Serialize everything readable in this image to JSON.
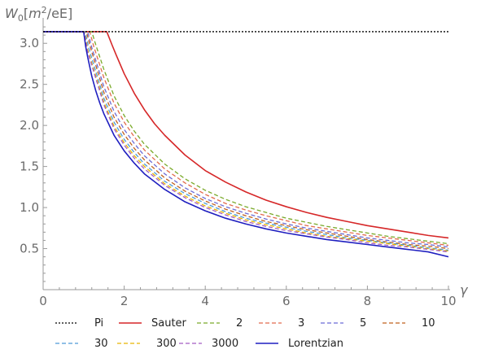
{
  "chart_data": {
    "type": "line",
    "ylabel_parts": {
      "symbol": "W",
      "sub": "0",
      "open": "[",
      "m": "m",
      "sup": "2",
      "rest": "/eE]"
    },
    "xlabel": "γ",
    "xlim": [
      0,
      10
    ],
    "ylim": [
      0,
      3.25
    ],
    "xticks": [
      0,
      2,
      4,
      6,
      8,
      10
    ],
    "yticks": [
      0.5,
      1.0,
      1.5,
      2.0,
      2.5,
      3.0
    ],
    "ytick_labels": [
      "0.5",
      "1.0",
      "1.5",
      "2.0",
      "2.5",
      "3.0"
    ],
    "legend_position": "bottom",
    "series": [
      {
        "name": "Pi",
        "color": "#000000",
        "dash": "dotted",
        "x": [
          0,
          10
        ],
        "y": [
          3.14159,
          3.14159
        ]
      },
      {
        "name": "Sauter",
        "color": "#d62728",
        "dash": "solid",
        "x": [
          0,
          1.57,
          1.7,
          1.8,
          2.0,
          2.25,
          2.5,
          2.75,
          3.0,
          3.5,
          4.0,
          4.5,
          5.0,
          5.5,
          6.0,
          6.5,
          7.0,
          7.5,
          8.0,
          8.5,
          9.0,
          9.5,
          10.0
        ],
        "y": [
          3.14159,
          3.14159,
          2.98,
          2.86,
          2.63,
          2.39,
          2.19,
          2.02,
          1.88,
          1.64,
          1.45,
          1.31,
          1.19,
          1.09,
          1.01,
          0.94,
          0.88,
          0.83,
          0.78,
          0.74,
          0.7,
          0.66,
          0.63
        ]
      },
      {
        "name": "2",
        "color": "#7aaa2a",
        "dash": "dashed",
        "x": [
          0,
          1.2,
          1.3,
          1.5,
          1.75,
          2.0,
          2.25,
          2.5,
          3.0,
          3.5,
          4.0,
          4.5,
          5.0,
          5.5,
          6.0,
          6.5,
          7.0,
          7.5,
          8.0,
          8.5,
          9.0,
          9.5,
          10.0
        ],
        "y": [
          3.14159,
          3.14159,
          2.98,
          2.68,
          2.36,
          2.12,
          1.93,
          1.77,
          1.53,
          1.35,
          1.21,
          1.1,
          1.01,
          0.94,
          0.87,
          0.82,
          0.77,
          0.73,
          0.69,
          0.65,
          0.62,
          0.59,
          0.56
        ]
      },
      {
        "name": "3",
        "color": "#e26a4d",
        "dash": "dashed",
        "x": [
          0,
          1.15,
          1.25,
          1.5,
          1.75,
          2.0,
          2.25,
          2.5,
          3.0,
          3.5,
          4.0,
          4.5,
          5.0,
          5.5,
          6.0,
          6.5,
          7.0,
          7.5,
          8.0,
          8.5,
          9.0,
          9.5,
          10.0
        ],
        "y": [
          3.14159,
          3.14159,
          2.96,
          2.58,
          2.27,
          2.04,
          1.86,
          1.7,
          1.47,
          1.3,
          1.16,
          1.05,
          0.97,
          0.9,
          0.84,
          0.78,
          0.74,
          0.7,
          0.66,
          0.63,
          0.6,
          0.57,
          0.54
        ]
      },
      {
        "name": "5",
        "color": "#6b6bd6",
        "dash": "dashed",
        "x": [
          0,
          1.1,
          1.2,
          1.5,
          1.75,
          2.0,
          2.25,
          2.5,
          3.0,
          3.5,
          4.0,
          4.5,
          5.0,
          5.5,
          6.0,
          6.5,
          7.0,
          7.5,
          8.0,
          8.5,
          9.0,
          9.5,
          10.0
        ],
        "y": [
          3.14159,
          3.14159,
          2.95,
          2.47,
          2.17,
          1.95,
          1.78,
          1.63,
          1.41,
          1.24,
          1.11,
          1.01,
          0.93,
          0.86,
          0.8,
          0.75,
          0.71,
          0.67,
          0.63,
          0.6,
          0.57,
          0.55,
          0.52
        ]
      },
      {
        "name": "10",
        "color": "#c0611e",
        "dash": "dashed",
        "x": [
          0,
          1.07,
          1.15,
          1.5,
          1.75,
          2.0,
          2.25,
          2.5,
          3.0,
          3.5,
          4.0,
          4.5,
          5.0,
          5.5,
          6.0,
          6.5,
          7.0,
          7.5,
          8.0,
          8.5,
          9.0,
          9.5,
          10.0
        ],
        "y": [
          3.14159,
          3.14159,
          2.98,
          2.4,
          2.1,
          1.89,
          1.72,
          1.58,
          1.36,
          1.2,
          1.08,
          0.98,
          0.9,
          0.83,
          0.78,
          0.73,
          0.69,
          0.65,
          0.61,
          0.58,
          0.55,
          0.53,
          0.5
        ]
      },
      {
        "name": "30",
        "color": "#4d9bd6",
        "dash": "dashed",
        "x": [
          0,
          1.04,
          1.12,
          1.5,
          1.75,
          2.0,
          2.25,
          2.5,
          3.0,
          3.5,
          4.0,
          4.5,
          5.0,
          5.5,
          6.0,
          6.5,
          7.0,
          7.5,
          8.0,
          8.5,
          9.0,
          9.5,
          10.0
        ],
        "y": [
          3.14159,
          3.14159,
          2.95,
          2.33,
          2.04,
          1.83,
          1.67,
          1.53,
          1.32,
          1.17,
          1.05,
          0.95,
          0.87,
          0.81,
          0.76,
          0.71,
          0.67,
          0.63,
          0.6,
          0.57,
          0.54,
          0.51,
          0.48
        ]
      },
      {
        "name": "300",
        "color": "#e6b400",
        "dash": "dashed",
        "x": [
          0,
          1.02,
          1.1,
          1.5,
          1.75,
          2.0,
          2.25,
          2.5,
          3.0,
          3.5,
          4.0,
          4.5,
          5.0,
          5.5,
          6.0,
          6.5,
          7.0,
          7.5,
          8.0,
          8.5,
          9.0,
          9.5,
          10.0
        ],
        "y": [
          3.14159,
          3.14159,
          2.92,
          2.28,
          1.99,
          1.79,
          1.63,
          1.5,
          1.29,
          1.14,
          1.02,
          0.93,
          0.85,
          0.79,
          0.74,
          0.69,
          0.65,
          0.62,
          0.59,
          0.56,
          0.53,
          0.5,
          0.47
        ]
      },
      {
        "name": "3000",
        "color": "#a35cc2",
        "dash": "dashed",
        "x": [
          0,
          1.01,
          1.09,
          1.5,
          1.75,
          2.0,
          2.25,
          2.5,
          3.0,
          3.5,
          4.0,
          4.5,
          5.0,
          5.5,
          6.0,
          6.5,
          7.0,
          7.5,
          8.0,
          8.5,
          9.0,
          9.5,
          10.0
        ],
        "y": [
          3.14159,
          3.14159,
          2.91,
          2.25,
          1.96,
          1.76,
          1.6,
          1.47,
          1.27,
          1.12,
          1.0,
          0.91,
          0.83,
          0.77,
          0.72,
          0.68,
          0.64,
          0.61,
          0.57,
          0.54,
          0.52,
          0.49,
          0.46
        ]
      },
      {
        "name": "Lorentzian",
        "color": "#1f1fc0",
        "dash": "solid",
        "x": [
          0,
          1.0,
          1.05,
          1.1,
          1.2,
          1.3,
          1.4,
          1.5,
          1.75,
          2.0,
          2.25,
          2.5,
          3.0,
          3.5,
          4.0,
          4.5,
          5.0,
          5.5,
          6.0,
          6.5,
          7.0,
          7.5,
          8.0,
          8.5,
          9.0,
          9.5,
          10.0
        ],
        "y": [
          3.14159,
          3.14159,
          2.96,
          2.83,
          2.6,
          2.42,
          2.27,
          2.14,
          1.88,
          1.69,
          1.54,
          1.41,
          1.22,
          1.07,
          0.96,
          0.87,
          0.8,
          0.74,
          0.69,
          0.65,
          0.61,
          0.58,
          0.55,
          0.52,
          0.49,
          0.46,
          0.4
        ]
      }
    ]
  }
}
